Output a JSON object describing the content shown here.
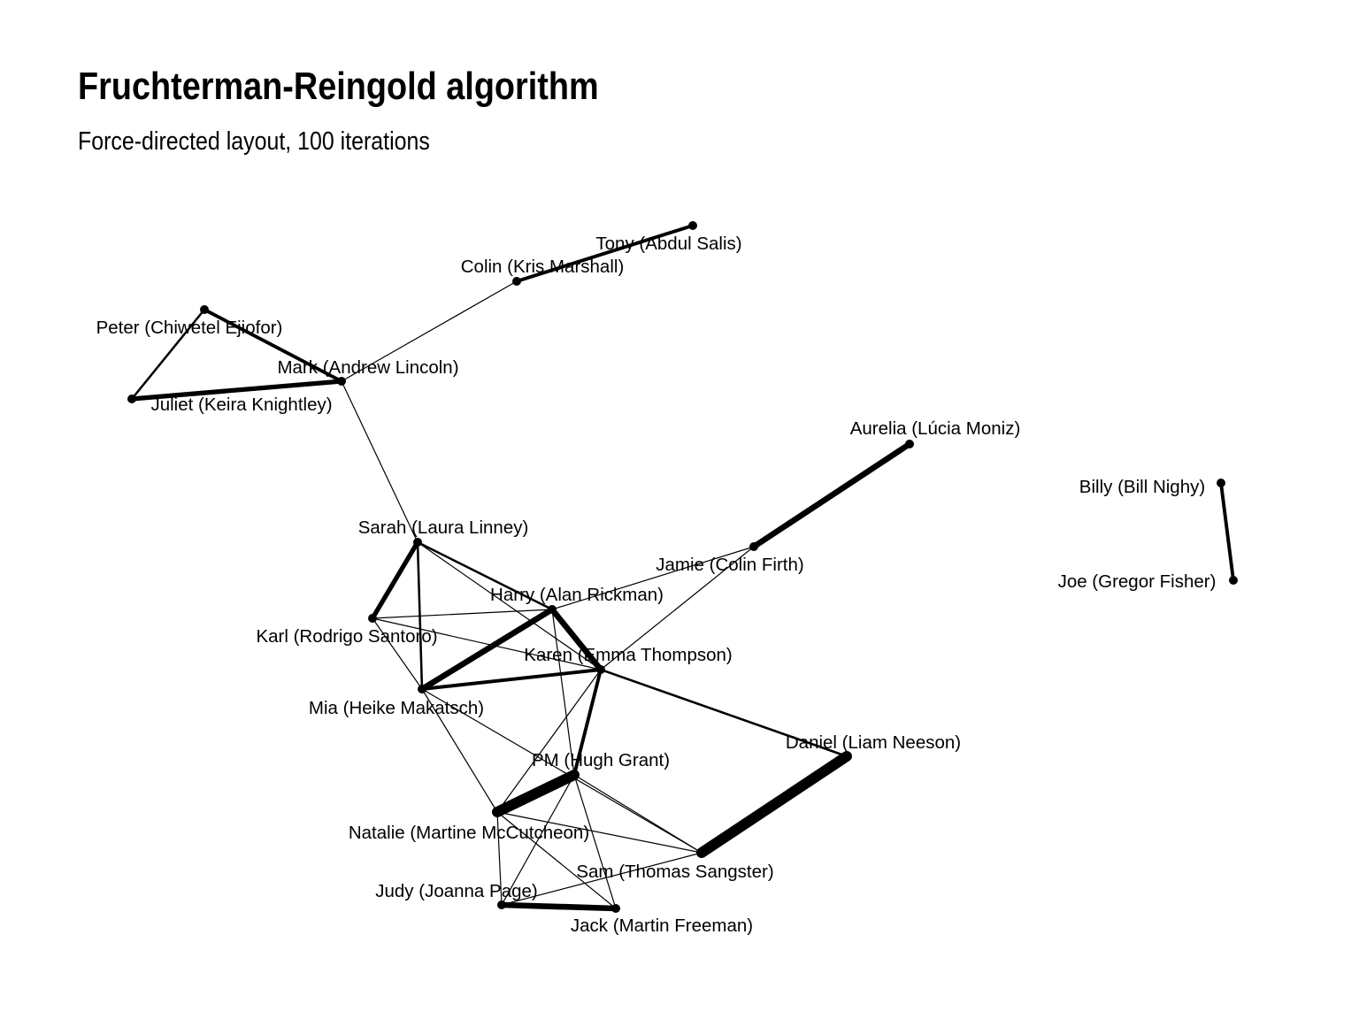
{
  "title": "Fruchterman-Reingold algorithm",
  "subtitle": "Force-directed layout, 100 iterations",
  "colors": {
    "edge": "#000000",
    "node": "#000000",
    "background": "#ffffff"
  },
  "nodes": [
    {
      "id": "tony",
      "label": "Tony (Abdul Salis)"
    },
    {
      "id": "colin",
      "label": "Colin (Kris Marshall)"
    },
    {
      "id": "peter",
      "label": "Peter (Chiwetel Ejiofor)"
    },
    {
      "id": "mark",
      "label": "Mark (Andrew Lincoln)"
    },
    {
      "id": "juliet",
      "label": "Juliet (Keira Knightley)"
    },
    {
      "id": "aurelia",
      "label": "Aurelia (Lúcia Moniz)"
    },
    {
      "id": "billy",
      "label": "Billy (Bill Nighy)"
    },
    {
      "id": "joe",
      "label": "Joe (Gregor Fisher)"
    },
    {
      "id": "sarah",
      "label": "Sarah (Laura Linney)"
    },
    {
      "id": "jamie",
      "label": "Jamie (Colin Firth)"
    },
    {
      "id": "harry",
      "label": "Harry (Alan Rickman)"
    },
    {
      "id": "karl",
      "label": "Karl (Rodrigo Santoro)"
    },
    {
      "id": "karen",
      "label": "Karen (Emma Thompson)"
    },
    {
      "id": "mia",
      "label": "Mia (Heike Makatsch)"
    },
    {
      "id": "daniel",
      "label": "Daniel (Liam Neeson)"
    },
    {
      "id": "pm",
      "label": "PM (Hugh Grant)"
    },
    {
      "id": "natalie",
      "label": "Natalie (Martine McCutcheon)"
    },
    {
      "id": "sam",
      "label": "Sam (Thomas Sangster)"
    },
    {
      "id": "judy",
      "label": "Judy (Joanna Page)"
    },
    {
      "id": "jack",
      "label": "Jack (Martin Freeman)"
    }
  ],
  "edges": [
    {
      "source": "colin",
      "target": "tony",
      "weight": 3
    },
    {
      "source": "mark",
      "target": "colin",
      "weight": 1
    },
    {
      "source": "peter",
      "target": "mark",
      "weight": 3
    },
    {
      "source": "peter",
      "target": "juliet",
      "weight": 2
    },
    {
      "source": "juliet",
      "target": "mark",
      "weight": 4
    },
    {
      "source": "mark",
      "target": "sarah",
      "weight": 1
    },
    {
      "source": "jamie",
      "target": "aurelia",
      "weight": 5
    },
    {
      "source": "billy",
      "target": "joe",
      "weight": 3
    },
    {
      "source": "sarah",
      "target": "karl",
      "weight": 4
    },
    {
      "source": "sarah",
      "target": "mia",
      "weight": 2
    },
    {
      "source": "sarah",
      "target": "harry",
      "weight": 2
    },
    {
      "source": "sarah",
      "target": "karen",
      "weight": 1
    },
    {
      "source": "karl",
      "target": "harry",
      "weight": 1
    },
    {
      "source": "karl",
      "target": "karen",
      "weight": 1
    },
    {
      "source": "karl",
      "target": "mia",
      "weight": 1
    },
    {
      "source": "harry",
      "target": "mia",
      "weight": 5
    },
    {
      "source": "harry",
      "target": "karen",
      "weight": 5
    },
    {
      "source": "harry",
      "target": "pm",
      "weight": 1
    },
    {
      "source": "harry",
      "target": "jamie",
      "weight": 1
    },
    {
      "source": "karen",
      "target": "mia",
      "weight": 3
    },
    {
      "source": "karen",
      "target": "jamie",
      "weight": 1
    },
    {
      "source": "karen",
      "target": "daniel",
      "weight": 2
    },
    {
      "source": "karen",
      "target": "pm",
      "weight": 3
    },
    {
      "source": "karen",
      "target": "natalie",
      "weight": 1
    },
    {
      "source": "mia",
      "target": "natalie",
      "weight": 1
    },
    {
      "source": "mia",
      "target": "sam",
      "weight": 1
    },
    {
      "source": "daniel",
      "target": "sam",
      "weight": 9
    },
    {
      "source": "pm",
      "target": "natalie",
      "weight": 9
    },
    {
      "source": "pm",
      "target": "sam",
      "weight": 1
    },
    {
      "source": "pm",
      "target": "judy",
      "weight": 1
    },
    {
      "source": "pm",
      "target": "jack",
      "weight": 1
    },
    {
      "source": "natalie",
      "target": "sam",
      "weight": 1
    },
    {
      "source": "natalie",
      "target": "judy",
      "weight": 1
    },
    {
      "source": "natalie",
      "target": "jack",
      "weight": 1
    },
    {
      "source": "judy",
      "target": "jack",
      "weight": 5
    },
    {
      "source": "judy",
      "target": "sam",
      "weight": 1
    }
  ]
}
